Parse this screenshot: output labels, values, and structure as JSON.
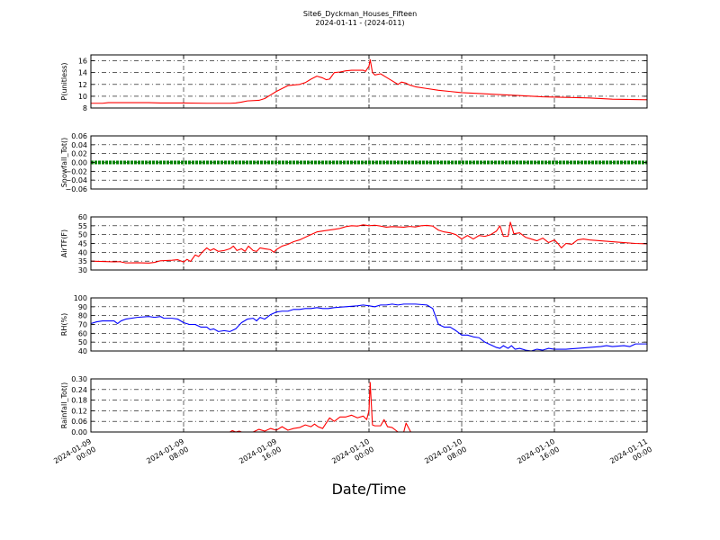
{
  "title": "Site6_Dyckman_Houses_Fifteen",
  "subtitle": "2024-01-11 - (2024-011)",
  "xlabel": "Date/Time",
  "chart_data": {
    "type": "line",
    "x_ticks": [
      [
        "2024-01-09",
        "00:00"
      ],
      [
        "2024-01-09",
        "08:00"
      ],
      [
        "2024-01-09",
        "16:00"
      ],
      [
        "2024-01-10",
        "00:00"
      ],
      [
        "2024-01-10",
        "08:00"
      ],
      [
        "2024-01-10",
        "16:00"
      ],
      [
        "2024-01-11",
        "00:00"
      ]
    ],
    "xlim": [
      0,
      48
    ],
    "grid": true,
    "panels": [
      {
        "ylabel": "P(unitless)",
        "ylim": [
          8,
          17
        ],
        "yticks": [
          8,
          10,
          12,
          14,
          16
        ],
        "ytick_labels": [
          "8",
          "10",
          "12",
          "14",
          "16"
        ],
        "color": "#ff0000",
        "points": [
          [
            0,
            8.8
          ],
          [
            1,
            8.8
          ],
          [
            1.5,
            8.9
          ],
          [
            2,
            8.9
          ],
          [
            3,
            8.9
          ],
          [
            4,
            8.9
          ],
          [
            5,
            8.9
          ],
          [
            6,
            8.85
          ],
          [
            8,
            8.85
          ],
          [
            10,
            8.8
          ],
          [
            12,
            8.8
          ],
          [
            12.5,
            8.85
          ],
          [
            13,
            9.0
          ],
          [
            13.5,
            9.2
          ],
          [
            14.5,
            9.3
          ],
          [
            15,
            9.6
          ],
          [
            15.5,
            10.2
          ],
          [
            16,
            10.8
          ],
          [
            16.5,
            11.3
          ],
          [
            17,
            11.8
          ],
          [
            17.5,
            11.9
          ],
          [
            18,
            12.0
          ],
          [
            18.5,
            12.3
          ],
          [
            19,
            12.9
          ],
          [
            19.5,
            13.4
          ],
          [
            20,
            13.1
          ],
          [
            20.3,
            12.8
          ],
          [
            20.6,
            12.9
          ],
          [
            21,
            14.0
          ],
          [
            21.5,
            14.1
          ],
          [
            22,
            14.3
          ],
          [
            22.5,
            14.4
          ],
          [
            23,
            14.4
          ],
          [
            23.5,
            14.4
          ],
          [
            23.7,
            14.2
          ],
          [
            24,
            15.1
          ],
          [
            24.1,
            16.2
          ],
          [
            24.3,
            14.0
          ],
          [
            24.5,
            13.6
          ],
          [
            25,
            13.8
          ],
          [
            25.5,
            13.2
          ],
          [
            26,
            12.6
          ],
          [
            26.5,
            12.0
          ],
          [
            26.8,
            12.4
          ],
          [
            27.2,
            12.2
          ],
          [
            27.5,
            11.9
          ],
          [
            28,
            11.6
          ],
          [
            29,
            11.3
          ],
          [
            30,
            11.0
          ],
          [
            31,
            10.8
          ],
          [
            32,
            10.6
          ],
          [
            33,
            10.5
          ],
          [
            35,
            10.3
          ],
          [
            37,
            10.1
          ],
          [
            39,
            9.9
          ],
          [
            41,
            9.8
          ],
          [
            43,
            9.7
          ],
          [
            45,
            9.5
          ],
          [
            48,
            9.4
          ]
        ]
      },
      {
        "ylabel": "Snowfall_Tot()",
        "ylim": [
          -0.06,
          0.06
        ],
        "yticks": [
          -0.06,
          -0.04,
          -0.02,
          0.0,
          0.02,
          0.04,
          0.06
        ],
        "ytick_labels": [
          "−0.06",
          "−0.04",
          "−0.02",
          "0.00",
          "0.02",
          "0.04",
          "0.06"
        ],
        "color": "#008000",
        "points": [
          [
            0,
            0
          ],
          [
            48,
            0
          ]
        ]
      },
      {
        "ylabel": "AirTF(F)",
        "ylim": [
          30,
          60
        ],
        "yticks": [
          30,
          35,
          40,
          45,
          50,
          55,
          60
        ],
        "ytick_labels": [
          "30",
          "35",
          "40",
          "45",
          "50",
          "55",
          "60"
        ],
        "color": "#ff0000",
        "points": [
          [
            0,
            35
          ],
          [
            1,
            34.8
          ],
          [
            2,
            34.6
          ],
          [
            2.5,
            34.7
          ],
          [
            3,
            34.0
          ],
          [
            4,
            34.1
          ],
          [
            5,
            33.9
          ],
          [
            5.5,
            34.3
          ],
          [
            6,
            35.2
          ],
          [
            7,
            35.5
          ],
          [
            7.5,
            35.8
          ],
          [
            8,
            34.5
          ],
          [
            8.3,
            36.0
          ],
          [
            8.6,
            34.8
          ],
          [
            9,
            38.5
          ],
          [
            9.3,
            37.6
          ],
          [
            9.6,
            40.0
          ],
          [
            10,
            42.5
          ],
          [
            10.3,
            41.0
          ],
          [
            10.6,
            42.0
          ],
          [
            11,
            40.5
          ],
          [
            11.5,
            41.0
          ],
          [
            12,
            42.0
          ],
          [
            12.3,
            43.5
          ],
          [
            12.6,
            41.0
          ],
          [
            13,
            42.0
          ],
          [
            13.3,
            40.5
          ],
          [
            13.6,
            43.5
          ],
          [
            14,
            41.0
          ],
          [
            14.3,
            40.5
          ],
          [
            14.6,
            42.5
          ],
          [
            15,
            42.0
          ],
          [
            15.5,
            41.5
          ],
          [
            15.8,
            40.0
          ],
          [
            16,
            41.5
          ],
          [
            16.5,
            43.5
          ],
          [
            17,
            44.5
          ],
          [
            17.5,
            46.0
          ],
          [
            18,
            47.0
          ],
          [
            18.5,
            48.5
          ],
          [
            19,
            50.0
          ],
          [
            19.5,
            51.5
          ],
          [
            20,
            52.0
          ],
          [
            21,
            53.0
          ],
          [
            21.5,
            53.5
          ],
          [
            22,
            54.5
          ],
          [
            22.5,
            55.0
          ],
          [
            23,
            54.8
          ],
          [
            23.5,
            55.5
          ],
          [
            24,
            55.0
          ],
          [
            24.5,
            55.3
          ],
          [
            25,
            54.8
          ],
          [
            25.5,
            54.2
          ],
          [
            26,
            54.5
          ],
          [
            27,
            54.2
          ],
          [
            27.5,
            54.6
          ],
          [
            28,
            54.3
          ],
          [
            28.5,
            55.0
          ],
          [
            29,
            55.2
          ],
          [
            29.5,
            54.8
          ],
          [
            30,
            52.5
          ],
          [
            30.5,
            51.5
          ],
          [
            31,
            51.0
          ],
          [
            31.5,
            50.0
          ],
          [
            32,
            47.5
          ],
          [
            32.5,
            49.5
          ],
          [
            33,
            47.5
          ],
          [
            33.5,
            49.5
          ],
          [
            34,
            49.0
          ],
          [
            34.5,
            50.0
          ],
          [
            35,
            52.0
          ],
          [
            35.3,
            55.0
          ],
          [
            35.6,
            49.0
          ],
          [
            36,
            49.0
          ],
          [
            36.2,
            57.0
          ],
          [
            36.5,
            50.5
          ],
          [
            37,
            51.0
          ],
          [
            37.5,
            48.5
          ],
          [
            38,
            47.5
          ],
          [
            38.5,
            46.5
          ],
          [
            39,
            48.0
          ],
          [
            39.5,
            45.5
          ],
          [
            40,
            47.0
          ],
          [
            40.3,
            45.0
          ],
          [
            40.6,
            42.5
          ],
          [
            41,
            45.0
          ],
          [
            41.5,
            44.5
          ],
          [
            42,
            47.0
          ],
          [
            42.5,
            47.5
          ],
          [
            43,
            47.0
          ],
          [
            44,
            46.5
          ],
          [
            45,
            46.0
          ],
          [
            46,
            45.5
          ],
          [
            47,
            45.0
          ],
          [
            48,
            44.8
          ]
        ]
      },
      {
        "ylabel": "RH(%)",
        "ylim": [
          40,
          100
        ],
        "yticks": [
          40,
          50,
          60,
          70,
          80,
          90,
          100
        ],
        "ytick_labels": [
          "40",
          "50",
          "60",
          "70",
          "80",
          "90",
          "100"
        ],
        "color": "#0000ff",
        "points": [
          [
            0,
            71
          ],
          [
            0.5,
            73
          ],
          [
            1,
            74
          ],
          [
            2,
            74
          ],
          [
            2.3,
            71
          ],
          [
            2.6,
            74
          ],
          [
            3,
            76
          ],
          [
            4,
            78
          ],
          [
            5,
            79
          ],
          [
            5.5,
            78
          ],
          [
            6,
            79
          ],
          [
            6.3,
            77
          ],
          [
            7,
            77
          ],
          [
            7.5,
            76
          ],
          [
            8,
            72
          ],
          [
            8.5,
            70
          ],
          [
            9,
            70
          ],
          [
            9.5,
            67
          ],
          [
            10,
            67
          ],
          [
            10.3,
            64
          ],
          [
            10.6,
            65
          ],
          [
            11,
            62
          ],
          [
            11.5,
            63
          ],
          [
            12,
            62
          ],
          [
            12.5,
            65
          ],
          [
            13,
            72
          ],
          [
            13.5,
            76
          ],
          [
            14,
            77
          ],
          [
            14.3,
            74
          ],
          [
            14.6,
            78
          ],
          [
            15,
            76
          ],
          [
            15.5,
            81
          ],
          [
            16,
            84
          ],
          [
            16.5,
            85
          ],
          [
            17,
            85
          ],
          [
            17.5,
            87
          ],
          [
            18,
            87
          ],
          [
            18.5,
            88
          ],
          [
            19,
            88
          ],
          [
            19.5,
            89
          ],
          [
            20,
            88
          ],
          [
            20.5,
            88
          ],
          [
            21,
            89
          ],
          [
            22,
            90
          ],
          [
            23,
            91
          ],
          [
            23.5,
            92
          ],
          [
            24,
            91
          ],
          [
            24.5,
            90
          ],
          [
            25,
            92
          ],
          [
            25.5,
            92
          ],
          [
            26,
            93
          ],
          [
            26.5,
            92
          ],
          [
            27,
            93
          ],
          [
            28,
            93
          ],
          [
            29,
            92
          ],
          [
            29.5,
            88
          ],
          [
            30,
            70
          ],
          [
            30.5,
            67
          ],
          [
            31,
            67
          ],
          [
            31.5,
            63
          ],
          [
            32,
            58
          ],
          [
            32.5,
            58
          ],
          [
            33,
            56
          ],
          [
            33.5,
            55
          ],
          [
            34,
            50
          ],
          [
            34.5,
            47
          ],
          [
            35,
            44
          ],
          [
            35.3,
            43
          ],
          [
            35.6,
            46
          ],
          [
            36,
            43
          ],
          [
            36.3,
            46
          ],
          [
            36.6,
            42
          ],
          [
            37,
            43
          ],
          [
            37.5,
            41
          ],
          [
            38,
            40
          ],
          [
            38.5,
            42
          ],
          [
            39,
            41
          ],
          [
            39.5,
            43
          ],
          [
            40,
            42
          ],
          [
            41,
            42
          ],
          [
            42,
            43
          ],
          [
            43,
            44
          ],
          [
            44,
            45
          ],
          [
            44.5,
            46
          ],
          [
            45,
            45
          ],
          [
            46,
            46
          ],
          [
            46.5,
            45
          ],
          [
            47,
            48
          ],
          [
            48,
            48
          ]
        ]
      },
      {
        "ylabel": "Rainfall_Tot()",
        "ylim": [
          0.0,
          0.3
        ],
        "yticks": [
          0.0,
          0.06,
          0.12,
          0.18,
          0.24,
          0.3
        ],
        "ytick_labels": [
          "0.00",
          "0.06",
          "0.12",
          "0.18",
          "0.24",
          "0.30"
        ],
        "color": "#ff0000",
        "points": [
          [
            0,
            0
          ],
          [
            12,
            0
          ],
          [
            12.2,
            0.008
          ],
          [
            12.5,
            0
          ],
          [
            12.8,
            0.005
          ],
          [
            13,
            0
          ],
          [
            14,
            0
          ],
          [
            14.5,
            0.015
          ],
          [
            15,
            0.005
          ],
          [
            15.5,
            0.02
          ],
          [
            16,
            0.01
          ],
          [
            16.5,
            0.03
          ],
          [
            17,
            0.01
          ],
          [
            17.5,
            0.02
          ],
          [
            18,
            0.025
          ],
          [
            18.5,
            0.04
          ],
          [
            19,
            0.03
          ],
          [
            19.3,
            0.045
          ],
          [
            19.6,
            0.03
          ],
          [
            20,
            0.02
          ],
          [
            20.3,
            0.05
          ],
          [
            20.6,
            0.08
          ],
          [
            21,
            0.06
          ],
          [
            21.5,
            0.085
          ],
          [
            22,
            0.085
          ],
          [
            22.5,
            0.095
          ],
          [
            23,
            0.08
          ],
          [
            23.5,
            0.09
          ],
          [
            23.8,
            0.07
          ],
          [
            24,
            0.12
          ],
          [
            24.1,
            0.28
          ],
          [
            24.3,
            0.04
          ],
          [
            24.5,
            0.035
          ],
          [
            25,
            0.035
          ],
          [
            25.3,
            0.07
          ],
          [
            25.6,
            0.03
          ],
          [
            26,
            0.025
          ],
          [
            26.5,
            0.0
          ],
          [
            27,
            0.0
          ],
          [
            27.2,
            0.05
          ],
          [
            27.6,
            0.0
          ],
          [
            48,
            0
          ]
        ]
      }
    ]
  }
}
